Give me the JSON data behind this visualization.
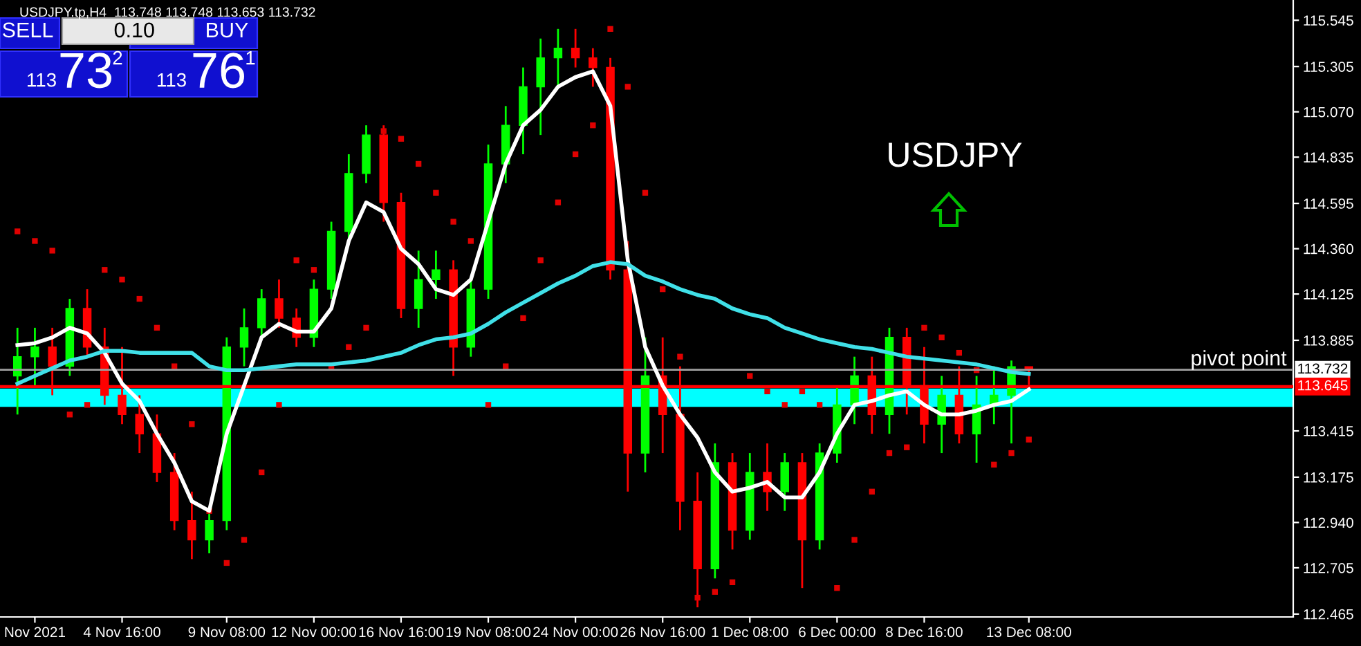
{
  "chart_data": {
    "type": "candlestick",
    "title": "USDJPY.tp,H4  113.748 113.748 113.653 113.732",
    "categories": [
      null,
      "Nov 2021",
      null,
      null,
      null,
      null,
      "4 Nov 16:00",
      null,
      null,
      null,
      null,
      null,
      "9 Nov 08:00",
      null,
      null,
      null,
      null,
      "12 Nov 00:00",
      null,
      null,
      null,
      null,
      "16 Nov 16:00",
      null,
      null,
      null,
      null,
      "19 Nov 08:00",
      null,
      null,
      null,
      null,
      "24 Nov 00:00",
      null,
      null,
      null,
      null,
      "26 Nov 16:00",
      null,
      null,
      null,
      null,
      "1 Dec 08:00",
      null,
      null,
      null,
      null,
      "6 Dec 00:00",
      null,
      null,
      null,
      null,
      "8 Dec 16:00",
      null,
      null,
      null,
      null,
      null,
      "13 Dec 08:00"
    ],
    "ohlc": [
      [
        113.7,
        113.95,
        113.5,
        113.8
      ],
      [
        113.8,
        113.95,
        113.65,
        113.85
      ],
      [
        113.85,
        113.95,
        113.6,
        113.75
      ],
      [
        113.75,
        114.1,
        113.7,
        114.05
      ],
      [
        114.05,
        114.15,
        113.8,
        113.85
      ],
      [
        113.85,
        113.95,
        113.55,
        113.6
      ],
      [
        113.6,
        113.85,
        113.45,
        113.5
      ],
      [
        113.5,
        113.6,
        113.3,
        113.4
      ],
      [
        113.4,
        113.5,
        113.15,
        113.2
      ],
      [
        113.2,
        113.3,
        112.9,
        112.95
      ],
      [
        112.95,
        113.1,
        112.75,
        112.85
      ],
      [
        112.85,
        113.0,
        112.78,
        112.95
      ],
      [
        112.95,
        113.9,
        112.9,
        113.85
      ],
      [
        113.85,
        114.05,
        113.75,
        113.95
      ],
      [
        113.95,
        114.15,
        113.9,
        114.1
      ],
      [
        114.1,
        114.2,
        113.95,
        114.0
      ],
      [
        114.0,
        114.05,
        113.85,
        113.9
      ],
      [
        113.9,
        114.2,
        113.85,
        114.15
      ],
      [
        114.15,
        114.5,
        114.1,
        114.45
      ],
      [
        114.45,
        114.85,
        114.4,
        114.75
      ],
      [
        114.75,
        115.0,
        114.7,
        114.95
      ],
      [
        114.95,
        115.0,
        114.5,
        114.6
      ],
      [
        114.6,
        114.65,
        114.0,
        114.05
      ],
      [
        114.05,
        114.35,
        113.95,
        114.2
      ],
      [
        114.2,
        114.35,
        114.1,
        114.25
      ],
      [
        114.25,
        114.3,
        113.7,
        113.85
      ],
      [
        113.85,
        114.2,
        113.8,
        114.15
      ],
      [
        114.15,
        114.9,
        114.1,
        114.8
      ],
      [
        114.8,
        115.1,
        114.7,
        115.0
      ],
      [
        115.0,
        115.3,
        114.85,
        115.2
      ],
      [
        115.2,
        115.45,
        114.95,
        115.35
      ],
      [
        115.35,
        115.5,
        115.2,
        115.4
      ],
      [
        115.4,
        115.5,
        115.3,
        115.35
      ],
      [
        115.35,
        115.4,
        115.2,
        115.3
      ],
      [
        115.3,
        115.35,
        114.2,
        114.25
      ],
      [
        114.25,
        114.4,
        113.1,
        113.3
      ],
      [
        113.3,
        113.9,
        113.2,
        113.7
      ],
      [
        113.7,
        113.9,
        113.3,
        113.5
      ],
      [
        113.5,
        113.75,
        112.9,
        113.05
      ],
      [
        113.05,
        113.2,
        112.5,
        112.7
      ],
      [
        112.7,
        113.35,
        112.65,
        113.25
      ],
      [
        113.25,
        113.3,
        112.8,
        112.9
      ],
      [
        112.9,
        113.3,
        112.85,
        113.2
      ],
      [
        113.2,
        113.35,
        113.0,
        113.1
      ],
      [
        113.1,
        113.3,
        113.0,
        113.25
      ],
      [
        113.25,
        113.3,
        112.6,
        112.85
      ],
      [
        112.85,
        113.35,
        112.8,
        113.3
      ],
      [
        113.3,
        113.65,
        113.25,
        113.55
      ],
      [
        113.55,
        113.8,
        113.45,
        113.7
      ],
      [
        113.7,
        113.8,
        113.4,
        113.5
      ],
      [
        113.5,
        113.95,
        113.4,
        113.9
      ],
      [
        113.9,
        113.95,
        113.5,
        113.65
      ],
      [
        113.65,
        113.85,
        113.35,
        113.45
      ],
      [
        113.45,
        113.7,
        113.3,
        113.6
      ],
      [
        113.6,
        113.75,
        113.35,
        113.4
      ],
      [
        113.4,
        113.7,
        113.25,
        113.55
      ],
      [
        113.55,
        113.75,
        113.45,
        113.6
      ],
      [
        113.6,
        113.78,
        113.35,
        113.748
      ],
      [
        113.748,
        113.748,
        113.653,
        113.732
      ]
    ],
    "colors": [
      "#00ff00",
      "#00ff00",
      "#ff0000",
      "#00ff00",
      "#ff0000",
      "#ff0000",
      "#ff0000",
      "#ff0000",
      "#ff0000",
      "#ff0000",
      "#ff0000",
      "#00ff00",
      "#00ff00",
      "#00ff00",
      "#00ff00",
      "#ff0000",
      "#ff0000",
      "#00ff00",
      "#00ff00",
      "#00ff00",
      "#00ff00",
      "#ff0000",
      "#ff0000",
      "#00ff00",
      "#00ff00",
      "#ff0000",
      "#00ff00",
      "#00ff00",
      "#00ff00",
      "#00ff00",
      "#00ff00",
      "#00ff00",
      "#ff0000",
      "#ff0000",
      "#ff0000",
      "#ff0000",
      "#00ff00",
      "#ff0000",
      "#ff0000",
      "#ff0000",
      "#00ff00",
      "#ff0000",
      "#00ff00",
      "#ff0000",
      "#00ff00",
      "#ff0000",
      "#00ff00",
      "#00ff00",
      "#00ff00",
      "#ff0000",
      "#00ff00",
      "#ff0000",
      "#ff0000",
      "#00ff00",
      "#ff0000",
      "#00ff00",
      "#00ff00",
      "#00ff00",
      "#ff0000"
    ],
    "series": [
      {
        "type": "line",
        "color": "#ffffff",
        "values": [
          113.86,
          113.87,
          113.9,
          113.95,
          113.92,
          113.82,
          113.66,
          113.57,
          113.4,
          113.25,
          113.05,
          113.0,
          113.4,
          113.65,
          113.9,
          113.97,
          113.93,
          113.93,
          114.05,
          114.4,
          114.6,
          114.55,
          114.36,
          114.28,
          114.15,
          114.12,
          114.2,
          114.5,
          114.8,
          115.0,
          115.08,
          115.2,
          115.25,
          115.28,
          115.1,
          114.3,
          113.85,
          113.65,
          113.5,
          113.38,
          113.2,
          113.1,
          113.12,
          113.15,
          113.07,
          113.07,
          113.2,
          113.4,
          113.55,
          113.57,
          113.6,
          113.62,
          113.55,
          113.5,
          113.5,
          113.52,
          113.55,
          113.57,
          113.63
        ]
      },
      {
        "type": "line",
        "color": "#40e0e8",
        "values": [
          113.66,
          113.7,
          113.74,
          113.78,
          113.8,
          113.83,
          113.83,
          113.82,
          113.82,
          113.82,
          113.82,
          113.75,
          113.73,
          113.73,
          113.74,
          113.75,
          113.76,
          113.76,
          113.76,
          113.77,
          113.78,
          113.8,
          113.82,
          113.86,
          113.89,
          113.9,
          113.92,
          113.97,
          114.03,
          114.08,
          114.13,
          114.18,
          114.22,
          114.27,
          114.29,
          114.28,
          114.22,
          114.19,
          114.15,
          114.12,
          114.1,
          114.05,
          114.02,
          114.0,
          113.95,
          113.92,
          113.89,
          113.87,
          113.85,
          113.84,
          113.82,
          113.8,
          113.79,
          113.78,
          113.77,
          113.76,
          113.74,
          113.72,
          113.71
        ]
      },
      {
        "type": "scatter",
        "color": "#e00000",
        "marker": "square",
        "values": [
          114.45,
          114.4,
          114.35,
          113.5,
          113.55,
          114.25,
          114.2,
          114.1,
          113.95,
          113.75,
          113.45,
          113.0,
          112.73,
          112.85,
          113.2,
          113.55,
          114.3,
          114.25,
          113.75,
          113.85,
          113.95,
          114.97,
          114.93,
          114.8,
          114.65,
          114.5,
          114.4,
          113.55,
          113.75,
          114.0,
          114.3,
          114.6,
          114.85,
          115.0,
          115.5,
          115.2,
          114.65,
          114.15,
          113.8,
          112.55,
          112.58,
          112.63,
          113.7,
          113.62,
          113.55,
          113.62,
          113.55,
          112.6,
          112.85,
          113.1,
          113.3,
          113.33,
          113.95,
          113.9,
          113.82,
          113.73,
          113.24,
          113.3,
          113.37
        ]
      }
    ],
    "ylim": [
      112.45,
      115.65
    ],
    "yticks": [
      115.545,
      115.305,
      {
        "value": 115.07,
        "label": "115.070"
      },
      114.835,
      114.595,
      {
        "value": 114.36,
        "label": "114.360"
      },
      114.125,
      113.885,
      113.415,
      113.175,
      {
        "value": 112.94,
        "label": "112.940"
      },
      112.705,
      112.465
    ],
    "ref_lines": [
      {
        "axis": "y",
        "value": 113.732,
        "label": "113.732",
        "color": "#a0a0a0"
      },
      {
        "axis": "y",
        "value": 113.645,
        "label": "113.645",
        "color": "#ff0000"
      }
    ],
    "bands": [
      {
        "axis": "y",
        "from": 113.54,
        "to": 113.635,
        "color": "#00ffff"
      }
    ],
    "annotations": [
      "SELL",
      "0.10",
      "BUY",
      "113",
      "73",
      "2",
      "113",
      "76",
      "1",
      "USDJPY",
      {
        "text": "pivot point",
        "y": 113.732
      }
    ],
    "grid": false,
    "legend": false
  }
}
